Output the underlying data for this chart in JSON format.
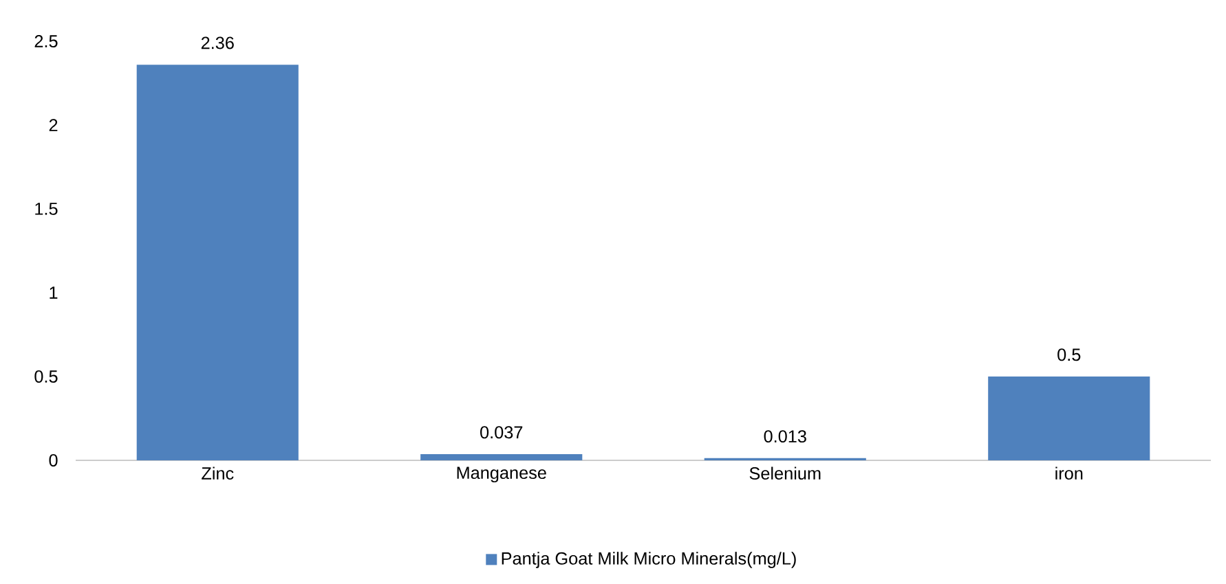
{
  "chart_data": {
    "type": "bar",
    "categories": [
      "Zinc",
      "Manganese",
      "Selenium",
      "iron"
    ],
    "series": [
      {
        "name": "Pantja Goat Milk Micro Minerals(mg/L)",
        "color": "#4f81bd",
        "values": [
          2.36,
          0.037,
          0.013,
          0.5
        ]
      }
    ],
    "ylim": [
      0,
      2.5
    ],
    "yticks": [
      0,
      0.5,
      1,
      1.5,
      2,
      2.5
    ],
    "data_labels": true,
    "legend": "bottom",
    "grid": false
  }
}
